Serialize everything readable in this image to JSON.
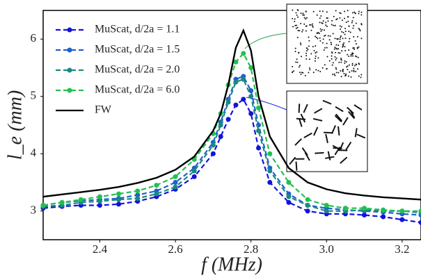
{
  "chart_data": {
    "type": "line",
    "xlabel": "f (MHz)",
    "ylabel": "l_e (mm)",
    "x": [
      2.25,
      2.3,
      2.35,
      2.4,
      2.45,
      2.5,
      2.55,
      2.6,
      2.65,
      2.7,
      2.72,
      2.74,
      2.76,
      2.78,
      2.8,
      2.82,
      2.85,
      2.9,
      2.95,
      3.0,
      3.05,
      3.1,
      3.15,
      3.2,
      3.25
    ],
    "series": [
      {
        "name": "MuScat, d/2a = 1.1",
        "color": "#1212e0",
        "dashed": true,
        "markers": true,
        "values": [
          3.05,
          3.08,
          3.1,
          3.1,
          3.12,
          3.17,
          3.25,
          3.38,
          3.6,
          4.0,
          4.3,
          4.6,
          4.85,
          4.95,
          4.7,
          4.1,
          3.5,
          3.15,
          3.0,
          2.95,
          2.95,
          2.93,
          2.9,
          2.85,
          2.8
        ]
      },
      {
        "name": "MuScat, d/2a = 1.5",
        "color": "#1f5fcf",
        "dashed": true,
        "markers": true,
        "values": [
          3.1,
          3.15,
          3.18,
          3.2,
          3.22,
          3.28,
          3.35,
          3.5,
          3.75,
          4.2,
          4.55,
          4.95,
          5.3,
          5.35,
          5.1,
          4.5,
          3.75,
          3.3,
          3.1,
          3.05,
          3.02,
          3.0,
          2.98,
          2.95,
          2.93
        ]
      },
      {
        "name": "MuScat, d/2a = 2.0",
        "color": "#1a8a80",
        "dashed": true,
        "markers": true,
        "values": [
          3.08,
          3.1,
          3.15,
          3.17,
          3.2,
          3.22,
          3.3,
          3.42,
          3.7,
          4.15,
          4.5,
          4.9,
          5.25,
          5.3,
          5.0,
          4.4,
          3.7,
          3.25,
          3.1,
          3.0,
          3.0,
          3.02,
          3.0,
          3.0,
          2.97
        ]
      },
      {
        "name": "MuScat, d/2a = 6.0",
        "color": "#22c050",
        "dashed": true,
        "markers": true,
        "values": [
          3.1,
          3.15,
          3.2,
          3.25,
          3.3,
          3.35,
          3.45,
          3.6,
          3.9,
          4.35,
          4.7,
          5.2,
          5.6,
          5.75,
          5.5,
          4.8,
          4.0,
          3.5,
          3.2,
          3.1,
          3.05,
          3.05,
          3.02,
          3.0,
          3.0
        ]
      },
      {
        "name": "FW",
        "color": "#000000",
        "dashed": false,
        "markers": false,
        "values": [
          3.25,
          3.29,
          3.33,
          3.37,
          3.42,
          3.49,
          3.58,
          3.72,
          3.95,
          4.4,
          4.7,
          5.2,
          5.85,
          6.15,
          5.8,
          5.0,
          4.3,
          3.75,
          3.5,
          3.38,
          3.31,
          3.27,
          3.24,
          3.22,
          3.2
        ]
      }
    ],
    "xlim": [
      2.25,
      3.25
    ],
    "xticks": [
      2.4,
      2.6,
      2.8,
      {
        "value": 3.0,
        "label": "3.0"
      },
      3.2
    ],
    "ylim": [
      2.5,
      6.5
    ],
    "yticks": [
      3,
      4,
      5,
      6
    ],
    "legend": "upper left"
  }
}
